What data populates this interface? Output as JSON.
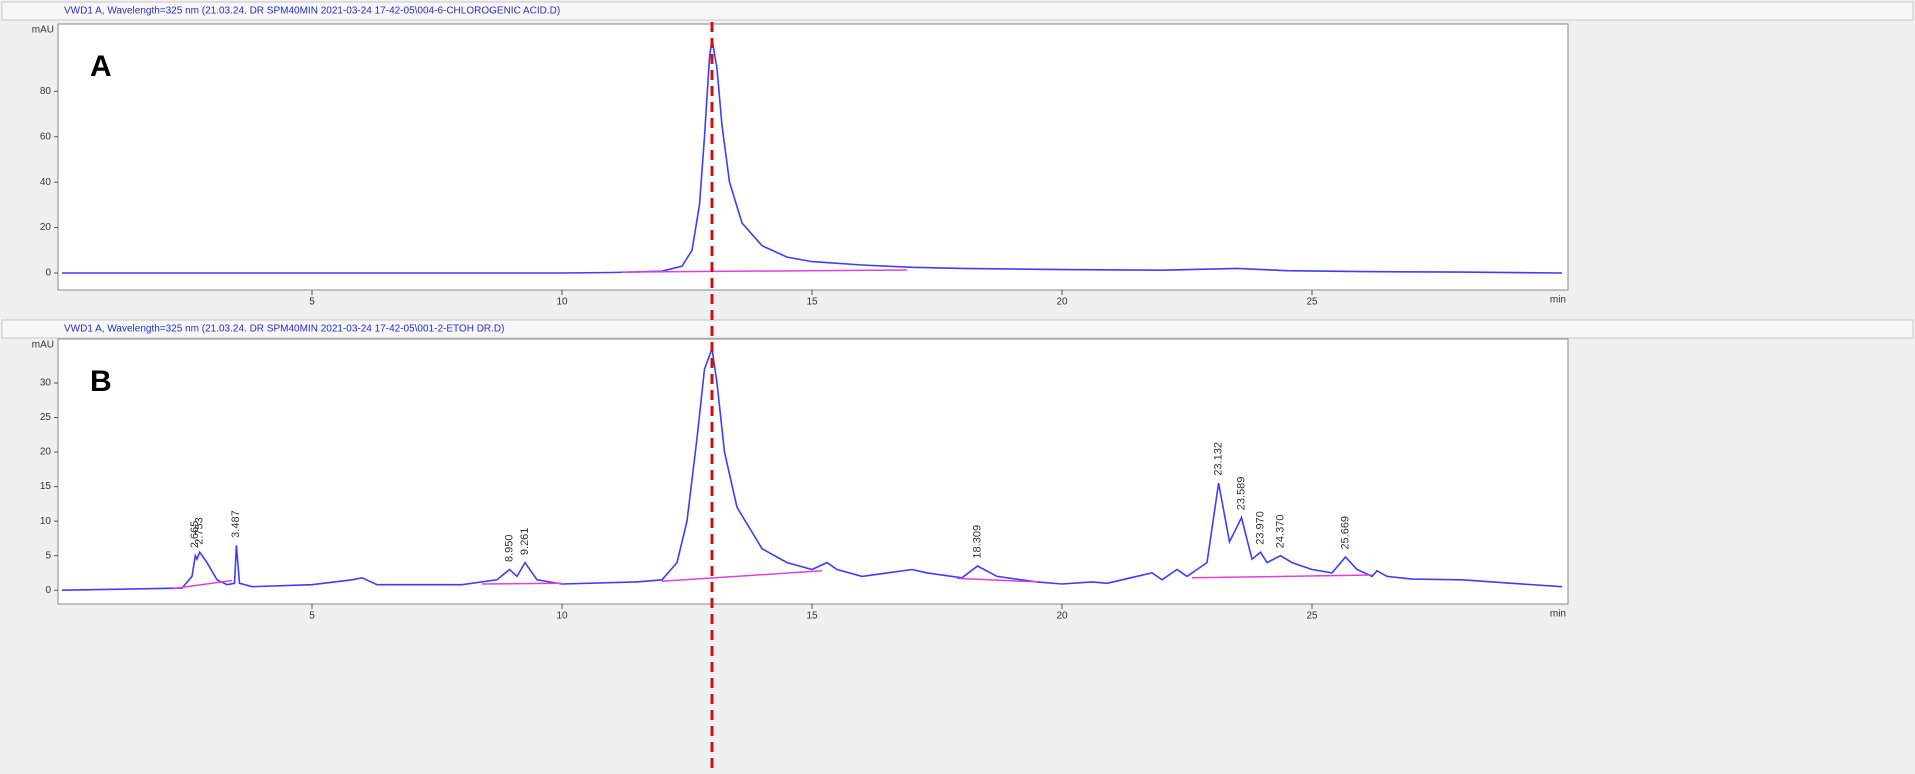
{
  "chart_data": [
    {
      "type": "line",
      "header": "VWD1 A, Wavelength=325 nm (21.03.24. DR SPM40MIN 2021-03-24 17-42-05\\004-6-CHLOROGENIC ACID.D)",
      "panel_label": "A",
      "y_label": "mAU",
      "x_label": "min",
      "x": [
        0,
        2,
        4,
        6,
        8,
        10,
        11,
        12,
        12.4,
        12.6,
        12.75,
        12.85,
        12.95,
        13.0,
        13.1,
        13.2,
        13.35,
        13.6,
        14,
        14.5,
        15,
        16,
        17,
        18,
        20,
        22,
        23.5,
        24.5,
        26,
        28,
        30
      ],
      "series": [
        {
          "color": "#3d3dff",
          "values": [
            0,
            0,
            0,
            0,
            0,
            0,
            0.2,
            0.8,
            3,
            10,
            30,
            60,
            95,
            103,
            90,
            65,
            40,
            22,
            12,
            7,
            5,
            3.5,
            2.5,
            2,
            1.5,
            1.2,
            2,
            1,
            0.6,
            0.4,
            0
          ]
        },
        {
          "color": "#e040e0",
          "x": [
            11.2,
            16.9
          ],
          "values": [
            0.4,
            1.3
          ]
        }
      ],
      "xlim": [
        0,
        30
      ],
      "xticks": [
        5,
        10,
        15,
        20,
        25
      ],
      "ylim": [
        -7.5,
        107
      ],
      "yticks": [
        0,
        20,
        40,
        60,
        80
      ],
      "annotations": []
    },
    {
      "type": "line",
      "header": "VWD1 A, Wavelength=325 nm (21.03.24. DR SPM40MIN 2021-03-24 17-42-05\\001-2-ETOH DR.D)",
      "panel_label": "B",
      "y_label": "mAU",
      "x_label": "min",
      "x": [
        0,
        2.4,
        2.6,
        2.665,
        2.7,
        2.753,
        2.9,
        3.1,
        3.3,
        3.45,
        3.487,
        3.55,
        3.8,
        5,
        5.8,
        6,
        6.3,
        8,
        8.7,
        8.95,
        9.1,
        9.261,
        9.5,
        10,
        11.5,
        12,
        12.3,
        12.5,
        12.7,
        12.85,
        13.0,
        13.1,
        13.25,
        13.5,
        14,
        14.5,
        15,
        15.3,
        15.5,
        16,
        17,
        17.3,
        18,
        18.309,
        18.7,
        19.5,
        20,
        20.6,
        20.9,
        21.8,
        22,
        22.3,
        22.5,
        22.9,
        23.132,
        23.35,
        23.589,
        23.8,
        23.97,
        24.1,
        24.37,
        24.6,
        25,
        25.4,
        25.669,
        25.9,
        26.2,
        26.3,
        26.5,
        27,
        28,
        29,
        30
      ],
      "series": [
        {
          "color": "#3d3dff",
          "values": [
            0,
            0.3,
            2,
            5,
            4.5,
            5.5,
            4,
            1.5,
            0.8,
            1,
            6.5,
            1,
            0.5,
            0.8,
            1.5,
            1.8,
            0.8,
            0.8,
            1.5,
            3,
            2,
            4,
            1.5,
            0.9,
            1.2,
            1.5,
            4,
            10,
            22,
            32,
            35,
            30,
            20,
            12,
            6,
            4,
            3,
            4,
            3,
            2,
            3,
            2.5,
            1.8,
            3.5,
            2,
            1.2,
            0.9,
            1.2,
            1,
            2.5,
            1.5,
            3,
            2,
            4,
            15.5,
            7,
            10.5,
            4.5,
            5.5,
            4,
            5,
            4,
            3,
            2.5,
            4.8,
            3,
            2,
            2.8,
            2,
            1.6,
            1.5,
            1,
            0.5
          ]
        },
        {
          "color": "#e040e0",
          "x": [
            2.2,
            3.4,
            3.5,
            8.4,
            10,
            10.5,
            12,
            15.2,
            15.5,
            17.9,
            19.5,
            20,
            22.6,
            26.2
          ],
          "values": [
            0.2,
            1.4,
            null,
            0.9,
            1.0,
            null,
            1.3,
            2.8,
            null,
            1.7,
            1.2,
            null,
            1.8,
            2.2
          ]
        }
      ],
      "xlim": [
        0,
        30
      ],
      "xticks": [
        5,
        10,
        15,
        20,
        25
      ],
      "ylim": [
        -2,
        35.5
      ],
      "yticks": [
        0,
        5,
        10,
        15,
        20,
        25,
        30
      ],
      "annotations": [
        {
          "label": "2.665",
          "x": 2.665,
          "y": 5.5
        },
        {
          "label": "2.753",
          "x": 2.753,
          "y": 6
        },
        {
          "label": "3.487",
          "x": 3.487,
          "y": 7
        },
        {
          "label": "8.950",
          "x": 8.95,
          "y": 3.5
        },
        {
          "label": "9.261",
          "x": 9.261,
          "y": 4.5
        },
        {
          "label": "18.309",
          "x": 18.309,
          "y": 4
        },
        {
          "label": "23.132",
          "x": 23.132,
          "y": 16
        },
        {
          "label": "23.589",
          "x": 23.589,
          "y": 11
        },
        {
          "label": "23.970",
          "x": 23.97,
          "y": 6
        },
        {
          "label": "24.370",
          "x": 24.37,
          "y": 5.5
        },
        {
          "label": "25.669",
          "x": 25.669,
          "y": 5.3
        }
      ]
    }
  ]
}
